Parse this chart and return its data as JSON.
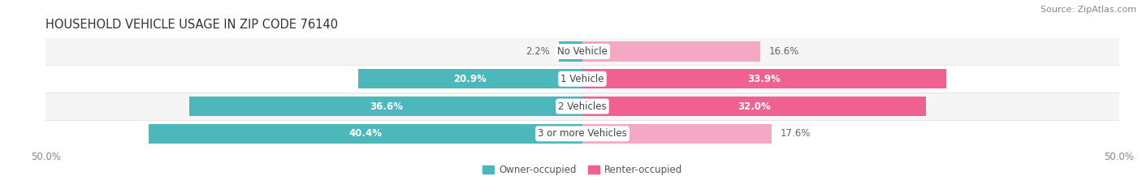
{
  "title": "HOUSEHOLD VEHICLE USAGE IN ZIP CODE 76140",
  "source": "Source: ZipAtlas.com",
  "categories": [
    "No Vehicle",
    "1 Vehicle",
    "2 Vehicles",
    "3 or more Vehicles"
  ],
  "owner_values": [
    2.2,
    20.9,
    36.6,
    40.4
  ],
  "renter_values": [
    16.6,
    33.9,
    32.0,
    17.6
  ],
  "owner_color": "#4db8bb",
  "renter_color": "#f06090",
  "renter_color_light": "#f4a8c4",
  "owner_label": "Owner-occupied",
  "renter_label": "Renter-occupied",
  "xlim": [
    -50,
    50
  ],
  "bar_height": 0.72,
  "row_bg_even": "#f5f5f5",
  "row_bg_odd": "#ffffff",
  "title_fontsize": 10.5,
  "source_fontsize": 8,
  "bar_label_fontsize": 8.5,
  "tick_fontsize": 8.5,
  "legend_fontsize": 8.5,
  "cat_label_fontsize": 8.5,
  "background_color": "#ffffff",
  "owner_threshold": 10,
  "renter_threshold": 20
}
